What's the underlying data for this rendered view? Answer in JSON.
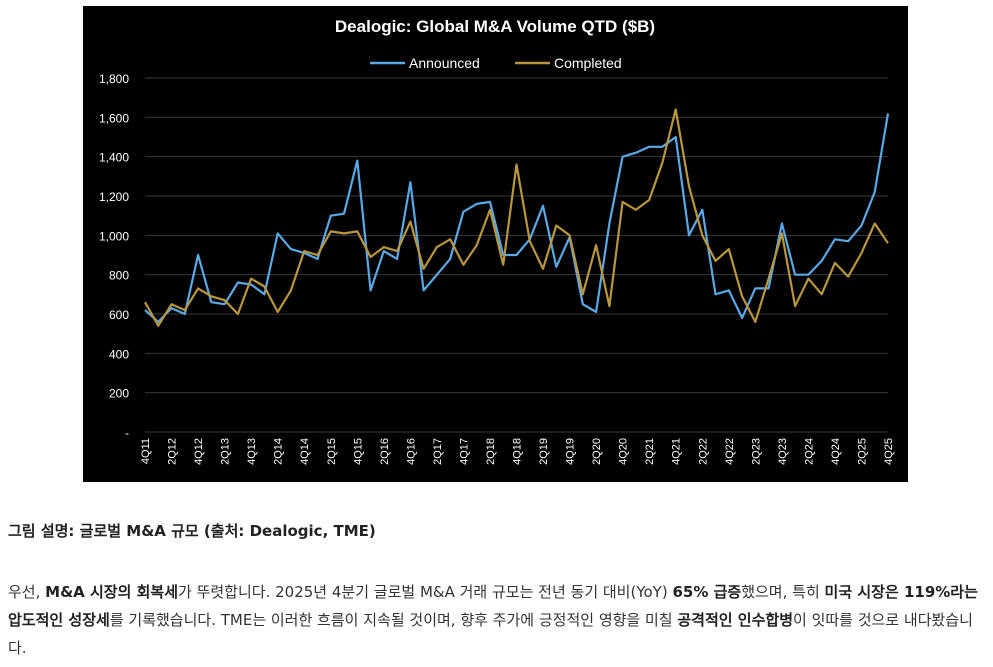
{
  "chart_data": {
    "type": "line",
    "title": "Dealogic: Global M&A Volume QTD ($B)",
    "xlabel": "",
    "ylabel": "",
    "ylim": [
      0,
      1800
    ],
    "yticks": [
      0,
      200,
      400,
      600,
      800,
      1000,
      1200,
      1400,
      1600,
      1800
    ],
    "ytick_labels": [
      "-",
      "200",
      "400",
      "600",
      "800",
      "1,000",
      "1,200",
      "1,400",
      "1,600",
      "1,800"
    ],
    "grid": "horizontal",
    "legend_position": "top-center",
    "x_tick_labels": [
      "4Q11",
      "2Q12",
      "4Q12",
      "2Q13",
      "4Q13",
      "2Q14",
      "4Q14",
      "2Q15",
      "4Q15",
      "2Q16",
      "4Q16",
      "2Q17",
      "4Q17",
      "2Q18",
      "4Q18",
      "2Q19",
      "4Q19",
      "2Q20",
      "4Q20",
      "2Q21",
      "4Q21",
      "2Q22",
      "4Q22",
      "2Q23",
      "4Q23",
      "2Q24",
      "4Q24",
      "2Q25",
      "4Q25"
    ],
    "x": [
      "4Q11",
      "1Q12",
      "2Q12",
      "3Q12",
      "4Q12",
      "1Q13",
      "2Q13",
      "3Q13",
      "4Q13",
      "1Q14",
      "2Q14",
      "3Q14",
      "4Q14",
      "1Q15",
      "2Q15",
      "3Q15",
      "4Q15",
      "1Q16",
      "2Q16",
      "3Q16",
      "4Q16",
      "1Q17",
      "2Q17",
      "3Q17",
      "4Q17",
      "1Q18",
      "2Q18",
      "3Q18",
      "4Q18",
      "1Q19",
      "2Q19",
      "3Q19",
      "4Q19",
      "1Q20",
      "2Q20",
      "3Q20",
      "4Q20",
      "1Q21",
      "2Q21",
      "3Q21",
      "4Q21",
      "1Q22",
      "2Q22",
      "3Q22",
      "4Q22",
      "1Q23",
      "2Q23",
      "3Q23",
      "4Q23",
      "1Q24",
      "2Q24",
      "3Q24",
      "4Q24",
      "1Q25",
      "2Q25",
      "3Q25",
      "4Q25"
    ],
    "series": [
      {
        "name": "Announced",
        "color": "#5aa9e6",
        "values": [
          620,
          560,
          630,
          600,
          900,
          660,
          650,
          760,
          750,
          700,
          1010,
          930,
          910,
          880,
          1100,
          1110,
          1380,
          720,
          920,
          880,
          1270,
          720,
          800,
          880,
          1120,
          1160,
          1170,
          900,
          900,
          980,
          1150,
          840,
          990,
          650,
          610,
          1060,
          1400,
          1420,
          1450,
          1450,
          1500,
          1000,
          1130,
          700,
          720,
          580,
          730,
          730,
          1060,
          800,
          800,
          870,
          980,
          970,
          1050,
          1220,
          1620
        ]
      },
      {
        "name": "Completed",
        "color": "#b8963e",
        "values": [
          660,
          540,
          650,
          620,
          730,
          690,
          670,
          600,
          780,
          740,
          610,
          720,
          920,
          900,
          1020,
          1010,
          1020,
          890,
          940,
          920,
          1070,
          830,
          940,
          980,
          850,
          950,
          1130,
          850,
          1360,
          970,
          830,
          1050,
          1000,
          700,
          950,
          640,
          1170,
          1130,
          1180,
          1370,
          1640,
          1250,
          1000,
          870,
          930,
          690,
          560,
          780,
          1010,
          640,
          780,
          700,
          860,
          790,
          910,
          1060,
          960
        ]
      }
    ]
  },
  "caption": "그림 설명: 글로벌 M&A 규모 (출처: Dealogic, TME)",
  "body": {
    "p1": "우선, ",
    "b1": "M&A 시장의 회복세",
    "p2": "가 뚜렷합니다. 2025년 4분기 글로벌 M&A 거래 규모는 전년 동기 대비(YoY) ",
    "b2": "65% 급증",
    "p3": "했으며, 특히 ",
    "b3": "미국 시장은 119%라는 압도적인 성장세",
    "p4": "를 기록했습니다. TME는 이러한 흐름이 지속될 것이며, 향후 주가에 긍정적인 영향을 미칠 ",
    "b4": "공격적인 인수합병",
    "p5": "이 잇따를 것으로 내다봤습니다."
  }
}
